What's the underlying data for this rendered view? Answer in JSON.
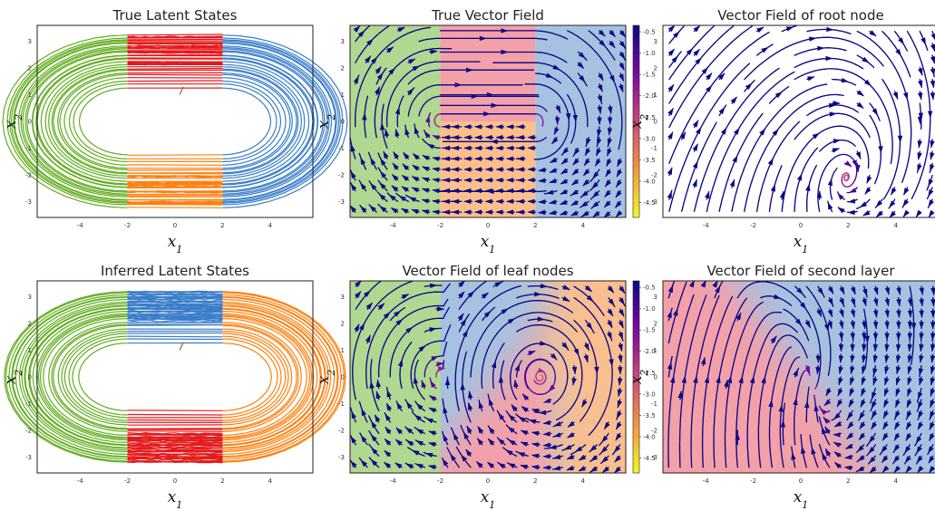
{
  "panel_titles": {
    "p0": "True Latent States",
    "p1": "True Vector Field",
    "p2": "Vector Field of root node",
    "p3": "Inferred Latent States",
    "p4": "Vector Field of leaf nodes",
    "p5": "Vector Field of second layer"
  },
  "axis_labels": {
    "x": "x",
    "x_sub": "1",
    "y": "x",
    "y_sub": "2"
  },
  "colors": {
    "green": "#63ad21",
    "red": "#e41a1c",
    "blue": "#3a7dc9",
    "orange": "#ff7f0e",
    "region_green": "#b0d890",
    "region_red": "#f4a0a8",
    "region_blue": "#a6c2e0",
    "region_orange": "#ffbf8a"
  },
  "colorbar": {
    "ticks": [
      "-0.5",
      "-1.0",
      "-1.5",
      "-2.0",
      "-2.5",
      "-3.0",
      "-3.5",
      "-4.0",
      "-4.5"
    ],
    "range": [
      -4.85,
      -0.35
    ],
    "cmap": "plasma"
  },
  "chart_data": [
    {
      "type": "line",
      "title": "True Latent States",
      "xlabel": "x1",
      "ylabel": "x2",
      "xlim": [
        -5.8,
        5.8
      ],
      "ylim": [
        -3.6,
        3.6
      ],
      "xticks": [
        "-4",
        "-2",
        "0",
        "2",
        "4"
      ],
      "yticks": [
        "3",
        "2",
        "1",
        "0",
        "-1",
        "-2",
        "-3"
      ],
      "description_segments": [
        {
          "name": "left arc",
          "color": "green",
          "x_range": [
            -5.2,
            -2.0
          ]
        },
        {
          "name": "top",
          "color": "red",
          "x_range": [
            -2.0,
            2.0
          ],
          "y_range": [
            1.2,
            3.2
          ]
        },
        {
          "name": "right arc",
          "color": "blue",
          "x_range": [
            2.0,
            5.3
          ]
        },
        {
          "name": "bottom",
          "color": "orange",
          "x_range": [
            -2.0,
            2.0
          ],
          "y_range": [
            -3.2,
            -1.2
          ]
        }
      ]
    },
    {
      "type": "heatmap",
      "title": "True Vector Field",
      "xlabel": "x1",
      "ylabel": "x2",
      "xlim": [
        -5.8,
        5.8
      ],
      "ylim": [
        -3.6,
        3.6
      ],
      "regions": [
        {
          "color": "region_green",
          "x_range": [
            -5.8,
            -2.0
          ]
        },
        {
          "color": "region_red",
          "x_range": [
            -2.0,
            2.0
          ],
          "y_range": [
            0,
            3.6
          ]
        },
        {
          "color": "region_orange",
          "x_range": [
            -2.0,
            2.0
          ],
          "y_range": [
            -3.6,
            0
          ]
        },
        {
          "color": "region_blue",
          "x_range": [
            2.0,
            5.8
          ]
        }
      ]
    },
    {
      "type": "heatmap",
      "title": "Vector Field of root node",
      "xlabel": "x1",
      "ylabel": "x2",
      "xlim": [
        -5.8,
        5.8
      ],
      "ylim": [
        -3.6,
        3.6
      ],
      "fixed_point": [
        2.0,
        -2.6
      ]
    },
    {
      "type": "line",
      "title": "Inferred Latent States",
      "xlabel": "x1",
      "ylabel": "x2",
      "xlim": [
        -5.8,
        5.8
      ],
      "ylim": [
        -3.6,
        3.6
      ],
      "description_segments": [
        {
          "name": "left arc",
          "color": "green",
          "x_range": [
            -5.2,
            -2.0
          ]
        },
        {
          "name": "top",
          "color": "blue",
          "x_range": [
            -2.0,
            2.0
          ],
          "y_range": [
            1.2,
            3.2
          ]
        },
        {
          "name": "right arc",
          "color": "orange",
          "x_range": [
            2.0,
            5.3
          ]
        },
        {
          "name": "bottom",
          "color": "red",
          "x_range": [
            -2.0,
            2.0
          ],
          "y_range": [
            -3.2,
            -1.2
          ]
        }
      ]
    },
    {
      "type": "heatmap",
      "title": "Vector Field of leaf nodes",
      "xlabel": "x1",
      "ylabel": "x2",
      "xlim": [
        -5.8,
        5.8
      ],
      "ylim": [
        -3.6,
        3.6
      ],
      "fixed_points": [
        [
          -1.9,
          0.0
        ],
        [
          2.2,
          0.0
        ]
      ]
    },
    {
      "type": "heatmap",
      "title": "Vector Field of second layer",
      "xlabel": "x1",
      "ylabel": "x2",
      "xlim": [
        -5.8,
        5.8
      ],
      "ylim": [
        -3.6,
        3.6
      ],
      "fixed_points": [
        [
          -1.5,
          0.3
        ],
        [
          2.3,
          -1.6
        ]
      ]
    }
  ]
}
